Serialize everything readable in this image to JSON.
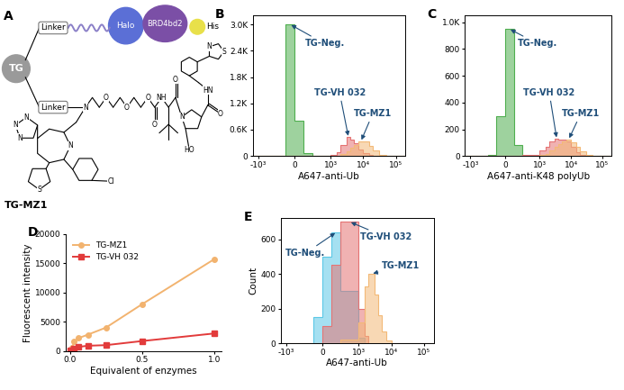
{
  "diagram": {
    "label": "A",
    "core": "TG",
    "linkers": [
      "Linker",
      "Linker"
    ],
    "proteins": [
      "Halo",
      "BRD4bd2",
      "His"
    ],
    "molecule": {
      "name": "TG-MZ1",
      "atoms": [
        "N",
        "O",
        "O",
        "O",
        "O",
        "NH",
        "O",
        "N",
        "HO",
        "O",
        "HN",
        "S",
        "N",
        "N",
        "N",
        "N",
        "N",
        "S",
        "Cl"
      ]
    }
  },
  "chart_data": [
    {
      "type": "histogram",
      "label": "B",
      "xlabel": "A647-anti-Ub",
      "log": "x",
      "bins": [
        -1500,
        -1000,
        -500,
        -250,
        0,
        250,
        500,
        1000,
        1500,
        2000,
        3000,
        4000,
        5000,
        7000,
        10000,
        15000,
        20000,
        30000,
        50000,
        100000,
        200000
      ],
      "series": [
        {
          "name": "TG-Neg.",
          "color": "#4fae4f",
          "values": [
            0,
            0,
            10,
            3000,
            800,
            60,
            0,
            0,
            0,
            0,
            0,
            0,
            0,
            0,
            0,
            0,
            0,
            0,
            0,
            0
          ]
        },
        {
          "name": "TG-VH 032",
          "color": "#e57373",
          "values": [
            0,
            0,
            0,
            0,
            0,
            0,
            5,
            30,
            80,
            250,
            430,
            380,
            300,
            150,
            60,
            20,
            5,
            0,
            0,
            0
          ]
        },
        {
          "name": "TG-MZ1",
          "color": "#f3b977",
          "values": [
            0,
            0,
            0,
            0,
            0,
            0,
            0,
            5,
            10,
            40,
            100,
            180,
            260,
            340,
            330,
            220,
            120,
            30,
            5,
            0
          ]
        }
      ],
      "xlim": [
        -1500,
        200000
      ],
      "xticks": [
        {
          "value": -1000,
          "label": "-10³"
        },
        0,
        {
          "value": 1000,
          "label": "10³"
        },
        {
          "value": 10000,
          "label": "10⁴"
        },
        {
          "value": 100000,
          "label": "10⁵"
        }
      ],
      "ylim": [
        0,
        3200
      ],
      "yticks": [
        0,
        {
          "value": 600,
          "label": "0.6K"
        },
        {
          "value": 1200,
          "label": "1.2K"
        },
        {
          "value": 1800,
          "label": "1.8K"
        },
        {
          "value": 2400,
          "label": "2.4K"
        },
        {
          "value": 3000,
          "label": "3.0K"
        }
      ]
    },
    {
      "type": "histogram",
      "label": "C",
      "xlabel": "A647-anti-K48 polyUb",
      "log": "x",
      "bins": [
        -1500,
        -1000,
        -500,
        -250,
        0,
        250,
        500,
        1000,
        1500,
        2000,
        3000,
        4000,
        5000,
        7000,
        10000,
        15000,
        20000,
        30000,
        50000,
        100000,
        200000
      ],
      "series": [
        {
          "name": "TG-Neg.",
          "color": "#4fae4f",
          "values": [
            0,
            0,
            5,
            300,
            950,
            80,
            0,
            0,
            0,
            0,
            0,
            0,
            0,
            0,
            0,
            0,
            0,
            0,
            0,
            0
          ]
        },
        {
          "name": "TG-VH 032",
          "color": "#e57373",
          "values": [
            0,
            0,
            0,
            0,
            0,
            0,
            10,
            40,
            70,
            110,
            130,
            120,
            125,
            110,
            70,
            30,
            10,
            0,
            0,
            0
          ]
        },
        {
          "name": "TG-MZ1",
          "color": "#f3b977",
          "values": [
            0,
            0,
            0,
            0,
            0,
            0,
            0,
            5,
            15,
            40,
            70,
            90,
            110,
            125,
            100,
            70,
            35,
            10,
            0,
            0
          ]
        }
      ],
      "xlim": [
        -1500,
        200000
      ],
      "xticks": [
        {
          "value": -1000,
          "label": "-10³"
        },
        0,
        {
          "value": 1000,
          "label": "10³"
        },
        {
          "value": 10000,
          "label": "10⁴"
        },
        {
          "value": 100000,
          "label": "10⁵"
        }
      ],
      "ylim": [
        0,
        1050
      ],
      "yticks": [
        0,
        200,
        400,
        600,
        800,
        {
          "value": 1000,
          "label": "1.0K"
        }
      ]
    },
    {
      "type": "line",
      "label": "D",
      "xlabel": "Equivalent of enzymes",
      "ylabel": "Fluorescent intensity",
      "x": [
        0,
        0.016,
        0.03,
        0.06,
        0.125,
        0.25,
        0.5,
        1.0
      ],
      "series": [
        {
          "name": "TG-MZ1",
          "color": "#f2b36f",
          "marker": "o",
          "values": [
            100,
            600,
            1600,
            2200,
            2800,
            4000,
            8000,
            15700
          ]
        },
        {
          "name": "TG-VH 032",
          "color": "#e23b3b",
          "marker": "s",
          "values": [
            50,
            150,
            400,
            700,
            900,
            1000,
            1700,
            3000
          ]
        }
      ],
      "xlim": [
        -0.03,
        1.05
      ],
      "xticks": [
        {
          "value": 0,
          "label": "0.0"
        },
        0.5,
        {
          "value": 1.0,
          "label": "1.0"
        }
      ],
      "ylim": [
        0,
        20000
      ],
      "yticks": [
        0,
        5000,
        10000,
        15000,
        20000
      ],
      "legend": "upper left"
    },
    {
      "type": "histogram",
      "label": "E",
      "xlabel": "A647-anti-Ub",
      "ylabel": "Count",
      "log": "x",
      "bins": [
        -1500,
        -1000,
        -500,
        -250,
        0,
        250,
        500,
        1000,
        1500,
        2000,
        3000,
        4000,
        5000,
        7000,
        10000,
        15000,
        20000,
        30000,
        50000,
        100000,
        200000
      ],
      "series": [
        {
          "name": "TG-Neg.",
          "color": "#5bc8e6",
          "values": [
            0,
            0,
            0,
            150,
            500,
            640,
            300,
            30,
            0,
            0,
            0,
            0,
            0,
            0,
            0,
            0,
            0,
            0,
            0,
            0
          ]
        },
        {
          "name": "TG-VH 032",
          "color": "#e57373",
          "values": [
            0,
            0,
            0,
            0,
            100,
            450,
            700,
            200,
            40,
            0,
            0,
            0,
            0,
            0,
            0,
            0,
            0,
            0,
            0,
            0
          ]
        },
        {
          "name": "TG-MZ1",
          "color": "#f3b977",
          "values": [
            0,
            0,
            0,
            0,
            0,
            0,
            20,
            120,
            330,
            400,
            280,
            160,
            70,
            15,
            0,
            0,
            0,
            0,
            0,
            0
          ]
        }
      ],
      "xlim": [
        -1500,
        200000
      ],
      "xticks": [
        {
          "value": -1000,
          "label": "-10³"
        },
        0,
        {
          "value": 1000,
          "label": "10³"
        },
        {
          "value": 10000,
          "label": "10⁴"
        },
        {
          "value": 100000,
          "label": "10⁵"
        }
      ],
      "ylim": [
        0,
        720
      ],
      "yticks": [
        0,
        200,
        400,
        600
      ]
    }
  ]
}
